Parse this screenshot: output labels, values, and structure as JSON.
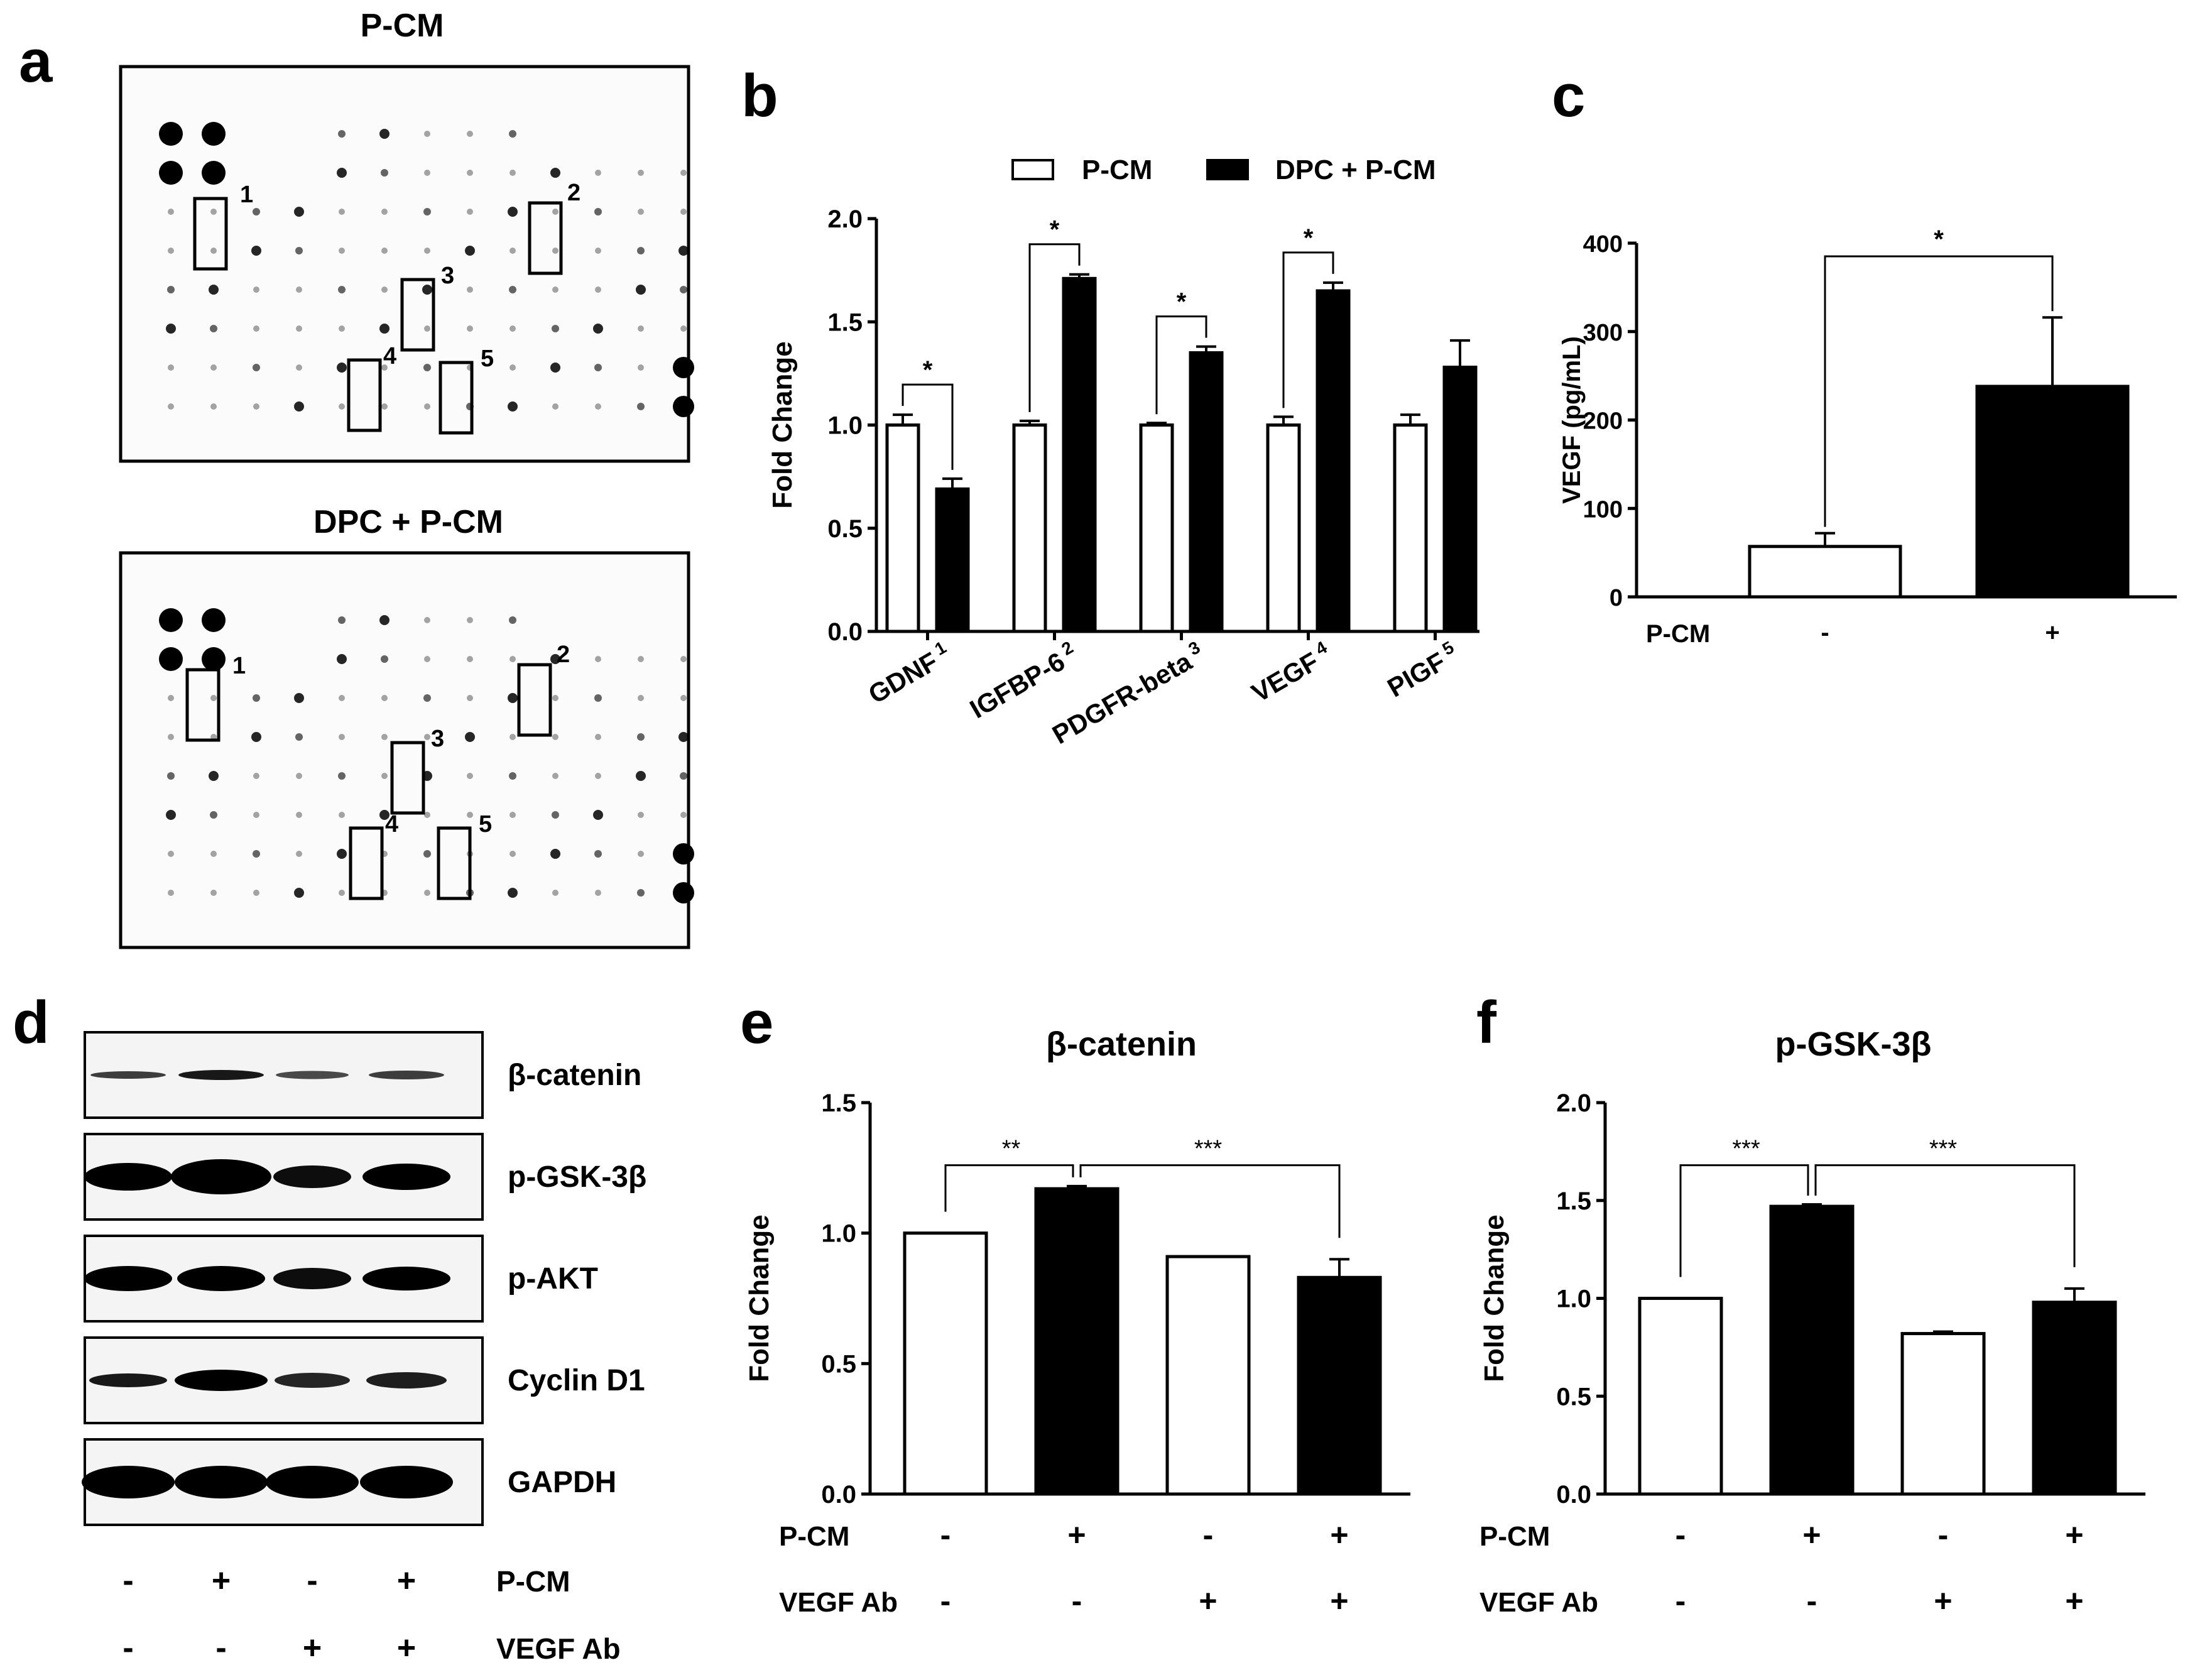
{
  "panels": {
    "a": {
      "letter": "a",
      "array1": {
        "title": "P-CM",
        "box_numbers": [
          "1",
          "2",
          "3",
          "4",
          "5"
        ]
      },
      "array2": {
        "title": "DPC + P-CM",
        "box_numbers": [
          "1",
          "2",
          "3",
          "4",
          "5"
        ]
      }
    },
    "b": {
      "letter": "b"
    },
    "c": {
      "letter": "c"
    },
    "d": {
      "letter": "d",
      "blots": [
        "β-catenin",
        "p-GSK-3β",
        "p-AKT",
        "Cyclin D1",
        "GAPDH"
      ],
      "rows": [
        {
          "label": "P-CM",
          "signs": [
            "-",
            "+",
            "-",
            "+"
          ]
        },
        {
          "label": "VEGF Ab",
          "signs": [
            "-",
            "-",
            "+",
            "+"
          ]
        }
      ]
    },
    "e": {
      "letter": "e"
    },
    "f": {
      "letter": "f"
    }
  },
  "chart_data": [
    {
      "panel": "b",
      "type": "bar",
      "categories": [
        "GDNF",
        "IGFBP-6",
        "PDGFR-beta",
        "VEGF",
        "PIGF"
      ],
      "category_superscripts": [
        "1",
        "2",
        "3",
        "4",
        "5"
      ],
      "series": [
        {
          "name": "P-CM",
          "values": [
            1.0,
            1.0,
            1.0,
            1.0,
            1.0
          ],
          "errors": [
            0.05,
            0.02,
            0.01,
            0.04,
            0.05
          ],
          "fill": "#ffffff"
        },
        {
          "name": "DPC + P-CM",
          "values": [
            0.69,
            1.71,
            1.35,
            1.65,
            1.28
          ],
          "errors": [
            0.05,
            0.02,
            0.03,
            0.04,
            0.13
          ],
          "fill": "#000000"
        }
      ],
      "significance": [
        "*",
        "*",
        "*",
        "*",
        ""
      ],
      "ylabel": "Fold Change",
      "ylim": [
        0,
        2.0
      ],
      "yticks": [
        "0.0",
        "0.5",
        "1.0",
        "1.5",
        "2.0"
      ],
      "legend": "top"
    },
    {
      "panel": "c",
      "type": "bar",
      "categories": [
        "-",
        "+"
      ],
      "row_label": "P-CM",
      "values": [
        57,
        238
      ],
      "errors": [
        15,
        78
      ],
      "fills": [
        "#ffffff",
        "#000000"
      ],
      "significance": "*",
      "ylabel": "VEGF (pg/mL)",
      "ylim": [
        0,
        400
      ],
      "yticks": [
        "0",
        "100",
        "200",
        "300",
        "400"
      ]
    },
    {
      "panel": "e",
      "type": "bar",
      "title": "β-catenin",
      "values": [
        1.0,
        1.17,
        0.91,
        0.83
      ],
      "errors": [
        0,
        0.01,
        0,
        0.07
      ],
      "fills": [
        "#ffffff",
        "#000000",
        "#ffffff",
        "#000000"
      ],
      "rows": [
        {
          "label": "P-CM",
          "signs": [
            "-",
            "+",
            "-",
            "+"
          ]
        },
        {
          "label": "VEGF Ab",
          "signs": [
            "-",
            "-",
            "+",
            "+"
          ]
        }
      ],
      "significance": [
        "**",
        "***"
      ],
      "ylabel": "Fold Change",
      "ylim": [
        0,
        1.5
      ],
      "yticks": [
        "0.0",
        "0.5",
        "1.0",
        "1.5"
      ]
    },
    {
      "panel": "f",
      "type": "bar",
      "title": "p-GSK-3β",
      "values": [
        1.0,
        1.47,
        0.82,
        0.98
      ],
      "errors": [
        0,
        0.01,
        0.01,
        0.07
      ],
      "fills": [
        "#ffffff",
        "#000000",
        "#ffffff",
        "#000000"
      ],
      "rows": [
        {
          "label": "P-CM",
          "signs": [
            "-",
            "+",
            "-",
            "+"
          ]
        },
        {
          "label": "VEGF Ab",
          "signs": [
            "-",
            "-",
            "+",
            "+"
          ]
        }
      ],
      "significance": [
        "***",
        "***"
      ],
      "ylabel": "Fold Change",
      "ylim": [
        0,
        2.0
      ],
      "yticks": [
        "0.0",
        "0.5",
        "1.0",
        "1.5",
        "2.0"
      ]
    }
  ]
}
